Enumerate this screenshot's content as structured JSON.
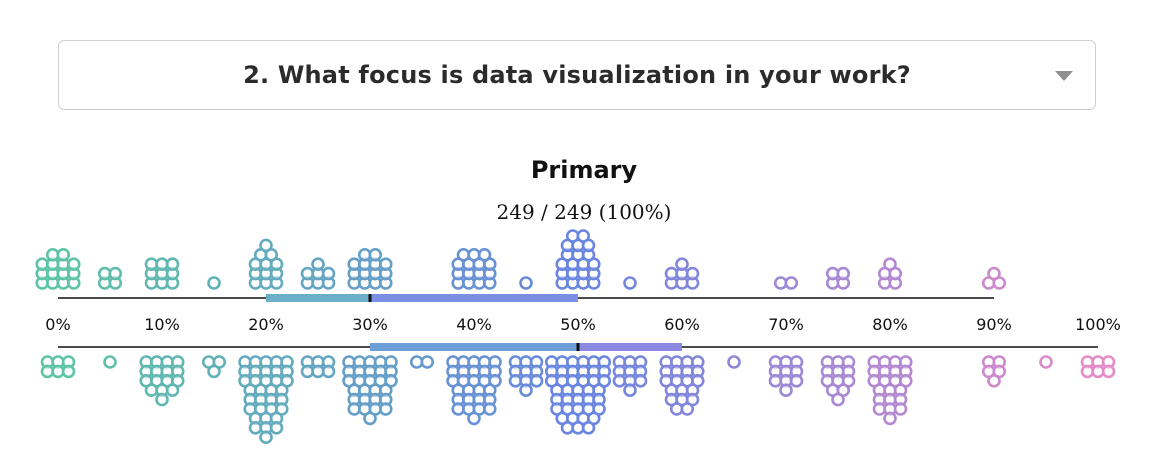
{
  "selector": {
    "question": "2. What focus is data visualization in your work?",
    "caret_icon": "chevron-down-icon"
  },
  "chart_data": {
    "type": "scatter",
    "title": "Primary",
    "subtitle": "249 / 249 (100%)",
    "x_ticks": [
      "0%",
      "10%",
      "20%",
      "30%",
      "40%",
      "50%",
      "60%",
      "70%",
      "80%",
      "90%",
      "100%"
    ],
    "xlim": [
      0,
      100
    ],
    "colors": {
      "low": "#5ec4a5",
      "mid": "#6a86e0",
      "high": "#e58bc8",
      "axis": "#111111",
      "top_band_left": "#6aaec8",
      "top_band_right": "#7b8ee6",
      "bottom_band_left": "#6b9fd6",
      "bottom_band_right": "#8a88e0"
    },
    "top_distribution": {
      "range_line": [
        0,
        90
      ],
      "interquartile": [
        20,
        50
      ],
      "median": 30,
      "points": [
        {
          "x": 0,
          "count": 14
        },
        {
          "x": 5,
          "count": 4
        },
        {
          "x": 10,
          "count": 9
        },
        {
          "x": 15,
          "count": 1
        },
        {
          "x": 20,
          "count": 12
        },
        {
          "x": 25,
          "count": 7
        },
        {
          "x": 30,
          "count": 14
        },
        {
          "x": 40,
          "count": 15
        },
        {
          "x": 45,
          "count": 1
        },
        {
          "x": 50,
          "count": 20
        },
        {
          "x": 55,
          "count": 1
        },
        {
          "x": 60,
          "count": 7
        },
        {
          "x": 70,
          "count": 2
        },
        {
          "x": 75,
          "count": 4
        },
        {
          "x": 80,
          "count": 5
        },
        {
          "x": 90,
          "count": 3
        }
      ]
    },
    "bottom_distribution": {
      "range_line": [
        0,
        100
      ],
      "interquartile": [
        30,
        60
      ],
      "median": 50,
      "points": [
        {
          "x": 0,
          "count": 6
        },
        {
          "x": 5,
          "count": 1
        },
        {
          "x": 10,
          "count": 16
        },
        {
          "x": 15,
          "count": 3
        },
        {
          "x": 20,
          "count": 34
        },
        {
          "x": 25,
          "count": 6
        },
        {
          "x": 30,
          "count": 28
        },
        {
          "x": 35,
          "count": 2
        },
        {
          "x": 40,
          "count": 28
        },
        {
          "x": 45,
          "count": 10
        },
        {
          "x": 50,
          "count": 40
        },
        {
          "x": 55,
          "count": 10
        },
        {
          "x": 60,
          "count": 20
        },
        {
          "x": 65,
          "count": 1
        },
        {
          "x": 70,
          "count": 10
        },
        {
          "x": 75,
          "count": 12
        },
        {
          "x": 80,
          "count": 22
        },
        {
          "x": 90,
          "count": 5
        },
        {
          "x": 95,
          "count": 1
        },
        {
          "x": 100,
          "count": 6
        }
      ]
    }
  }
}
